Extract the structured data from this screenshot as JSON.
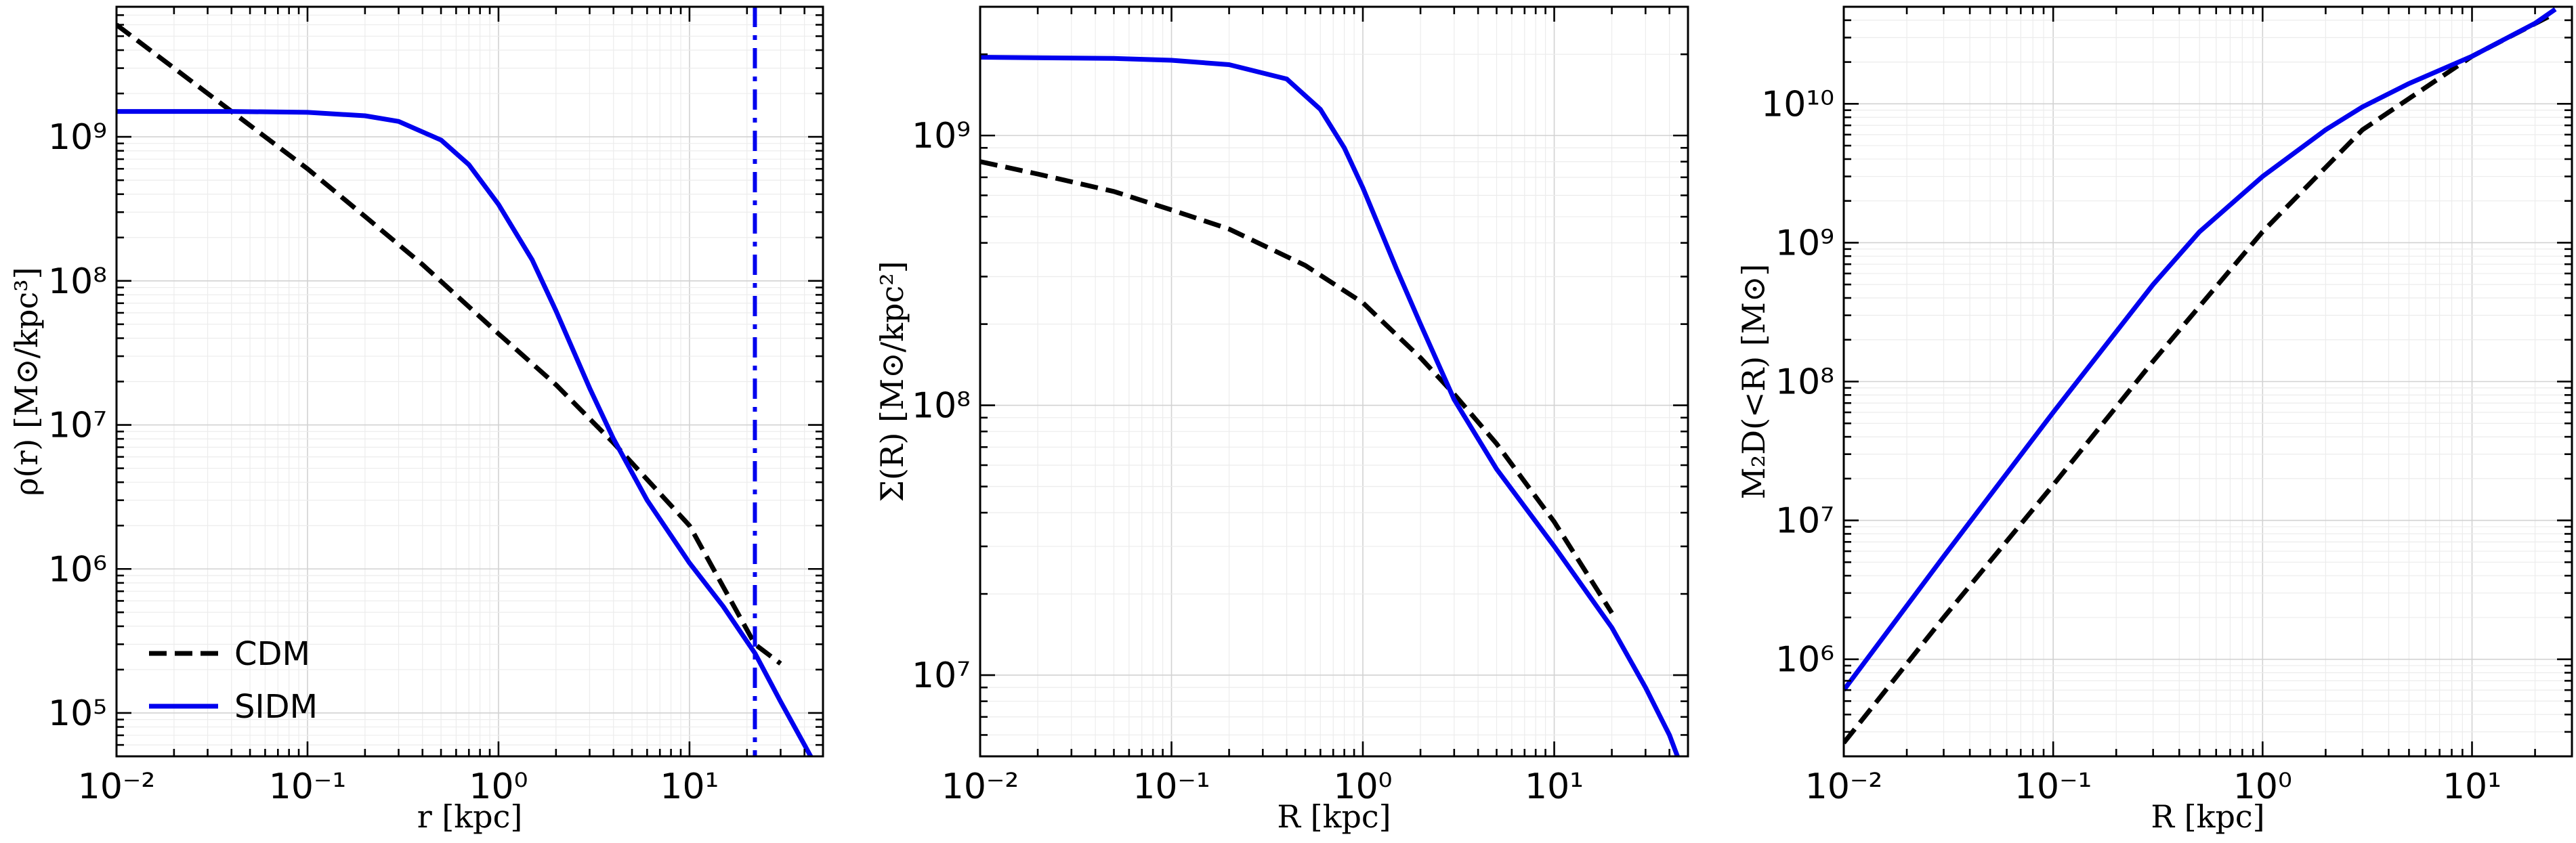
{
  "chart_data": [
    {
      "type": "line",
      "xscale": "log",
      "yscale": "log",
      "xlim": [
        0.01,
        50
      ],
      "ylim": [
        50000,
        8000000000
      ],
      "xlabel": "r [kpc]",
      "ylabel": "ρ(r) [M⊙/kpc³]",
      "xticks": [
        0.01,
        0.1,
        1,
        10
      ],
      "xtick_labels": [
        "10⁻²",
        "10⁻¹",
        "10⁰",
        "10¹"
      ],
      "yticks": [
        100000,
        1000000,
        10000000,
        100000000,
        1000000000
      ],
      "ytick_labels": [
        "10⁵",
        "10⁶",
        "10⁷",
        "10⁸",
        "10⁹"
      ],
      "grid": true,
      "legend": {
        "placement": "lower-left",
        "entries": [
          {
            "label": "CDM",
            "style": "dashed",
            "color": "#000000"
          },
          {
            "label": "SIDM",
            "style": "solid",
            "color": "#0000ee"
          }
        ]
      },
      "vline": {
        "x": 22,
        "style": "dashdot",
        "color": "#0000ee"
      },
      "series": [
        {
          "style": "dashed",
          "color": "#000000",
          "x": [
            0.01,
            0.02,
            0.04,
            0.1,
            0.2,
            0.4,
            1,
            2,
            4,
            10,
            22,
            30
          ],
          "y": [
            6000000000,
            3000000000,
            1500000000,
            600000000,
            280000000,
            130000000,
            43000000,
            19000000,
            7500000,
            2000000,
            300000,
            220000
          ]
        },
        {
          "style": "solid",
          "color": "#0000ee",
          "x": [
            0.01,
            0.04,
            0.1,
            0.2,
            0.3,
            0.5,
            0.7,
            1,
            1.5,
            2,
            3,
            4,
            6,
            10,
            15,
            22,
            30,
            40,
            45
          ],
          "y": [
            1500000000,
            1500000000,
            1480000000,
            1400000000,
            1280000000,
            950000000,
            640000000,
            340000000,
            140000000,
            62000000,
            18000000,
            8000000,
            3000000,
            1100000,
            550000,
            260000,
            120000,
            60000,
            45000
          ]
        }
      ]
    },
    {
      "type": "line",
      "xscale": "log",
      "yscale": "log",
      "xlim": [
        0.01,
        50
      ],
      "ylim": [
        5000000,
        3000000000
      ],
      "xlabel": "R [kpc]",
      "ylabel": "Σ(R) [M⊙/kpc²]",
      "xticks": [
        0.01,
        0.1,
        1,
        10
      ],
      "xtick_labels": [
        "10⁻²",
        "10⁻¹",
        "10⁰",
        "10¹"
      ],
      "yticks": [
        10000000,
        100000000,
        1000000000
      ],
      "ytick_labels": [
        "10⁷",
        "10⁸",
        "10⁹"
      ],
      "grid": true,
      "series": [
        {
          "style": "dashed",
          "color": "#000000",
          "x": [
            0.01,
            0.02,
            0.05,
            0.1,
            0.2,
            0.5,
            1,
            2,
            3,
            5,
            10,
            20
          ],
          "y": [
            800000000,
            720000000,
            620000000,
            530000000,
            450000000,
            330000000,
            240000000,
            150000000,
            110000000,
            72000000,
            37000000,
            17000000
          ]
        },
        {
          "style": "solid",
          "color": "#0000ee",
          "x": [
            0.01,
            0.05,
            0.1,
            0.2,
            0.4,
            0.6,
            0.8,
            1,
            1.5,
            2,
            3,
            5,
            10,
            20,
            30,
            40,
            45
          ],
          "y": [
            1950000000,
            1930000000,
            1900000000,
            1830000000,
            1620000000,
            1250000000,
            900000000,
            640000000,
            320000000,
            200000000,
            105000000,
            58000000,
            30000000,
            15000000,
            9000000,
            6000000,
            4800000
          ]
        }
      ]
    },
    {
      "type": "line",
      "xscale": "log",
      "yscale": "log",
      "xlim": [
        0.01,
        30
      ],
      "ylim": [
        200000,
        50000000000
      ],
      "xlabel": "R [kpc]",
      "ylabel": "M₂D(<R) [M⊙]",
      "xticks": [
        0.01,
        0.1,
        1,
        10
      ],
      "xtick_labels": [
        "10⁻²",
        "10⁻¹",
        "10⁰",
        "10¹"
      ],
      "yticks": [
        1000000,
        10000000,
        100000000,
        1000000000,
        10000000000
      ],
      "ytick_labels": [
        "10⁶",
        "10⁷",
        "10⁸",
        "10⁹",
        "10¹⁰"
      ],
      "grid": true,
      "series": [
        {
          "style": "dashed",
          "color": "#000000",
          "x": [
            0.01,
            0.03,
            0.1,
            0.3,
            1,
            3,
            10,
            25
          ],
          "y": [
            250000,
            2000000,
            18000000,
            140000000,
            1200000000,
            6500000000,
            22000000000,
            45000000000
          ]
        },
        {
          "style": "solid",
          "color": "#0000ee",
          "x": [
            0.01,
            0.03,
            0.1,
            0.3,
            0.5,
            1,
            2,
            3,
            5,
            10,
            20,
            25
          ],
          "y": [
            600000,
            5500000,
            60000000,
            500000000,
            1200000000,
            3000000000,
            6500000000,
            9500000000,
            14000000000,
            22000000000,
            38000000000,
            48000000000
          ]
        }
      ]
    }
  ]
}
